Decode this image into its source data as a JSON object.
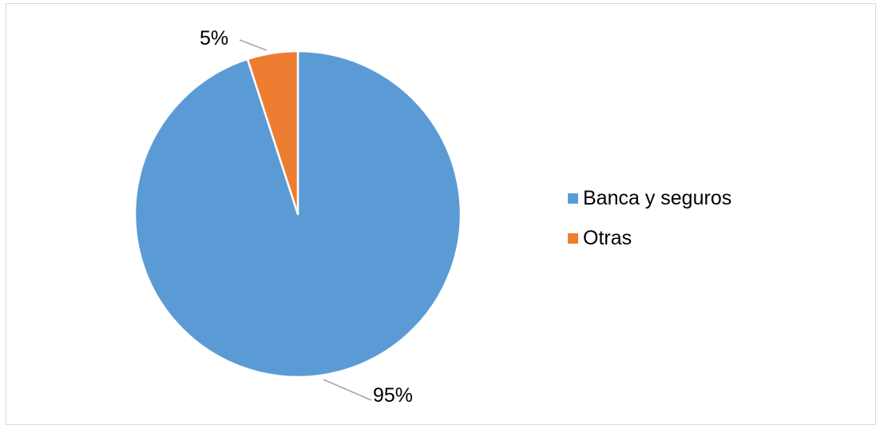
{
  "chart_data": {
    "type": "pie",
    "title": "",
    "start_angle_deg": 0,
    "direction": "clockwise",
    "slices": [
      {
        "label": "Banca y seguros",
        "value": 95,
        "data_label": "95%",
        "color": "#5B9BD5"
      },
      {
        "label": "Otras",
        "value": 5,
        "data_label": "5%",
        "color": "#ED7D31"
      }
    ],
    "legend_position": "right",
    "leader_line_color": "#A6A6A6"
  }
}
